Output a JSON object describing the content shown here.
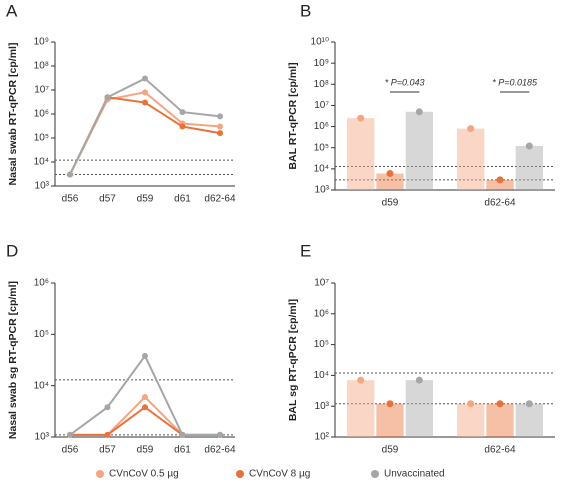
{
  "chart_data": [
    {
      "type": "line",
      "panel": "A",
      "ylabel": "Nasal swab RT-qPCR [cp/ml]",
      "log_y": true,
      "categories": [
        "d56",
        "d57",
        "d59",
        "d61",
        "d62-64"
      ],
      "ylim": [
        1000,
        1000000000
      ],
      "yticks": [
        {
          "value": 1000,
          "label": "10³"
        },
        {
          "value": 10000,
          "label": "10⁴"
        },
        {
          "value": 100000,
          "label": "10⁵"
        },
        {
          "value": 1000000,
          "label": "10⁶"
        },
        {
          "value": 10000000,
          "label": "10⁷"
        },
        {
          "value": 100000000,
          "label": "10⁸"
        },
        {
          "value": 1000000000,
          "label": "10⁹"
        }
      ],
      "hlines": [
        12000,
        3000
      ],
      "series": [
        {
          "name": "CVnCoV 0.5 µg",
          "color": "#f4a582",
          "values": [
            3000,
            4000000,
            8000000,
            400000,
            300000
          ]
        },
        {
          "name": "CVnCoV 8 µg",
          "color": "#e8733a",
          "values": [
            3000,
            5000000,
            3000000,
            300000,
            160000
          ]
        },
        {
          "name": "Unvaccinated",
          "color": "#a6a6a6",
          "values": [
            3000,
            5000000,
            30000000,
            1200000,
            800000
          ]
        }
      ]
    },
    {
      "type": "bar",
      "panel": "B",
      "ylabel": "BAL RT-qPCR [cp/ml]",
      "log_y": true,
      "categories": [
        "d59",
        "d62-64"
      ],
      "ylim": [
        1000,
        10000000000
      ],
      "yticks": [
        {
          "value": 1000,
          "label": "10³"
        },
        {
          "value": 10000,
          "label": "10⁴"
        },
        {
          "value": 100000,
          "label": "10⁵"
        },
        {
          "value": 1000000,
          "label": "10⁶"
        },
        {
          "value": 10000000,
          "label": "10⁷"
        },
        {
          "value": 100000000,
          "label": "10⁸"
        },
        {
          "value": 1000000000,
          "label": "10⁹"
        },
        {
          "value": 10000000000,
          "label": "10¹⁰"
        }
      ],
      "hlines": [
        13000,
        3000
      ],
      "annotations": [
        "* P=0.043",
        "* P=0.0185"
      ],
      "series": [
        {
          "color": "#f4a582",
          "values": [
            2500000,
            800000
          ]
        },
        {
          "color": "#e8733a",
          "values": [
            6000,
            3000
          ]
        },
        {
          "color": "#a6a6a6",
          "values": [
            5000000,
            120000
          ]
        }
      ]
    },
    {
      "type": "line",
      "panel": "D",
      "ylabel": "Nasal swab sg RT-qPCR [cp/ml]",
      "log_y": true,
      "categories": [
        "d56",
        "d57",
        "d59",
        "d61",
        "d62-64"
      ],
      "ylim": [
        1000,
        1000000
      ],
      "yticks": [
        {
          "value": 1000,
          "label": "10³"
        },
        {
          "value": 10000,
          "label": "10⁴"
        },
        {
          "value": 100000,
          "label": "10⁵"
        },
        {
          "value": 1000000,
          "label": "10⁶"
        }
      ],
      "hlines": [
        13000,
        1100
      ],
      "series": [
        {
          "color": "#f4a582",
          "values": [
            1100,
            1100,
            6000,
            1100,
            1100
          ]
        },
        {
          "color": "#e8733a",
          "values": [
            1100,
            1100,
            3800,
            1100,
            1100
          ]
        },
        {
          "color": "#a6a6a6",
          "values": [
            1100,
            3800,
            38000,
            1100,
            1100
          ]
        }
      ]
    },
    {
      "type": "bar",
      "panel": "E",
      "ylabel": "BAL sg RT-qPCR [cp/ml]",
      "log_y": true,
      "categories": [
        "d59",
        "d62-64"
      ],
      "ylim": [
        100,
        10000000
      ],
      "yticks": [
        {
          "value": 100,
          "label": "10²"
        },
        {
          "value": 1000,
          "label": "10³"
        },
        {
          "value": 10000,
          "label": "10⁴"
        },
        {
          "value": 100000,
          "label": "10⁵"
        },
        {
          "value": 1000000,
          "label": "10⁶"
        },
        {
          "value": 10000000,
          "label": "10⁷"
        }
      ],
      "hlines": [
        12000,
        1200
      ],
      "series": [
        {
          "color": "#f4a582",
          "values": [
            7000,
            1200
          ]
        },
        {
          "color": "#e8733a",
          "values": [
            1200,
            1200
          ]
        },
        {
          "color": "#a6a6a6",
          "values": [
            7000,
            1200
          ]
        }
      ]
    }
  ]
}
